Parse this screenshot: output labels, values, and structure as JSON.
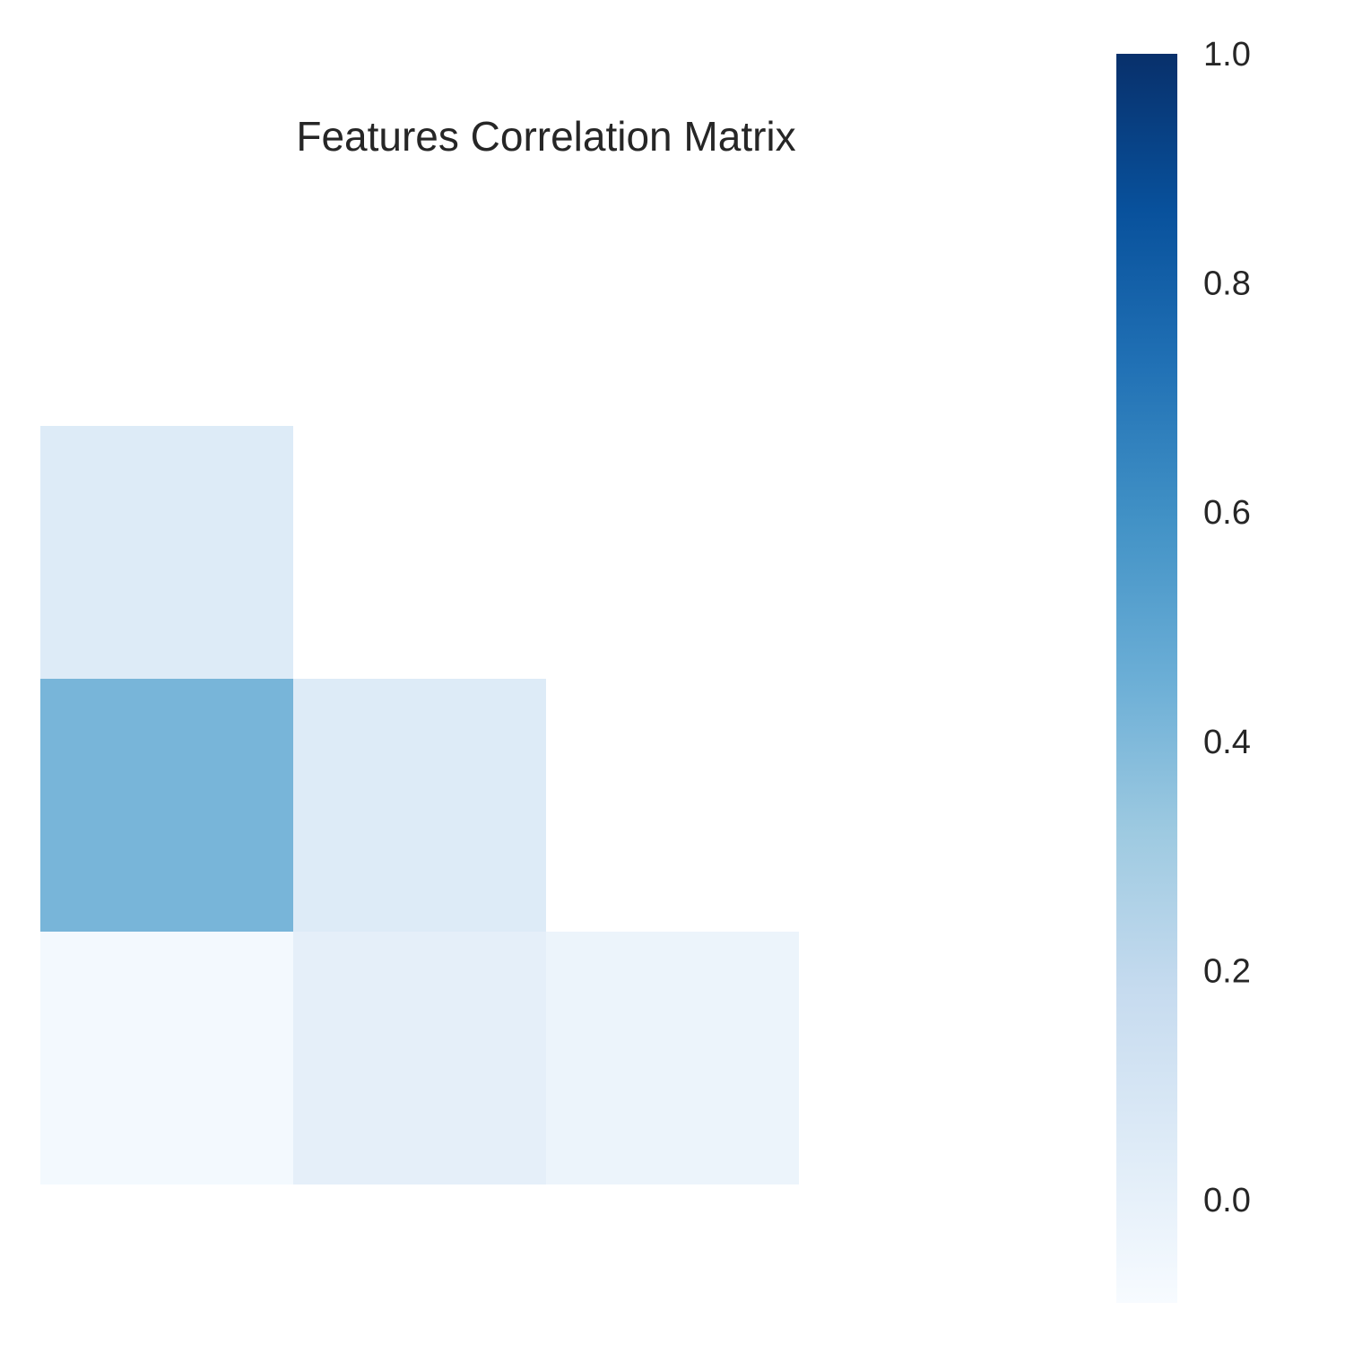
{
  "chart_data": {
    "type": "heatmap",
    "title": "Features Correlation Matrix",
    "xlabel": "",
    "ylabel": "",
    "grid": false,
    "mask": "upper-triangle-including-diagonal",
    "n": 4,
    "cells": [
      {
        "row": 1,
        "col": 0,
        "value": 0.05
      },
      {
        "row": 2,
        "col": 0,
        "value": 0.42
      },
      {
        "row": 2,
        "col": 1,
        "value": 0.05
      },
      {
        "row": 3,
        "col": 0,
        "value": -0.07
      },
      {
        "row": 3,
        "col": 1,
        "value": 0.01
      },
      {
        "row": 3,
        "col": 2,
        "value": -0.03
      }
    ],
    "colormap": "Blues",
    "colormap_stops": [
      "#f7fbff",
      "#deebf7",
      "#c6dbef",
      "#9ecae1",
      "#6baed6",
      "#4292c6",
      "#2171b5",
      "#08519c",
      "#08306b"
    ],
    "colorbar": {
      "vmin": -0.09,
      "vmax": 1.0,
      "ticks": [
        0.0,
        0.2,
        0.4,
        0.6,
        0.8,
        1.0
      ],
      "tick_labels": [
        "0.0",
        "0.2",
        "0.4",
        "0.6",
        "0.8",
        "1.0"
      ],
      "placement": "right"
    }
  }
}
